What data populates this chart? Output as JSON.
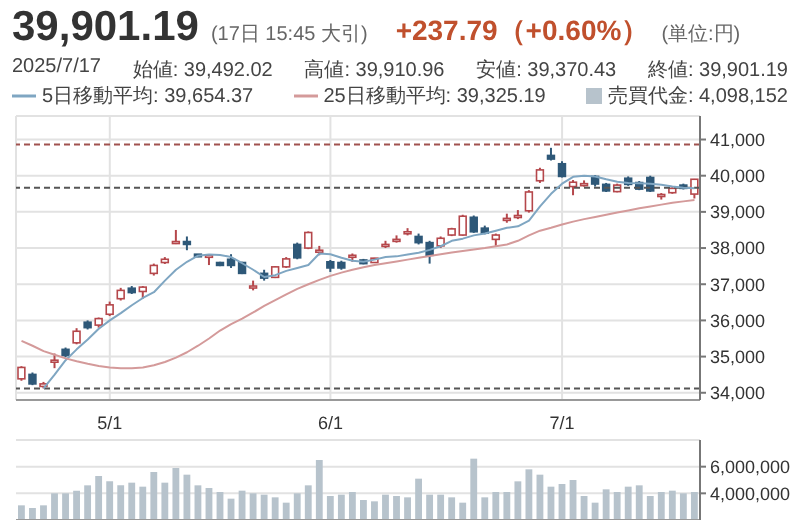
{
  "chart_data": [
    {
      "type": "candlestick",
      "title": "39,901.19",
      "subtitle": "(17日 15:45 大引)",
      "annotations": [
        "+237.79（+0.60%）",
        "(単位:円)",
        "2025/7/17",
        "始値: 39,492.02",
        "高値: 39,910.96",
        "安値: 39,370.43",
        "終値: 39,901.19"
      ],
      "categories": [
        null,
        null,
        null,
        null,
        null,
        null,
        null,
        null,
        "5/1",
        null,
        null,
        null,
        null,
        null,
        null,
        null,
        null,
        null,
        null,
        null,
        null,
        null,
        null,
        null,
        null,
        null,
        null,
        null,
        "6/1",
        null,
        null,
        null,
        null,
        null,
        null,
        null,
        null,
        null,
        null,
        null,
        null,
        null,
        null,
        null,
        null,
        null,
        null,
        null,
        null,
        "7/1",
        null,
        null,
        null,
        null,
        null,
        null,
        null,
        null,
        null,
        null,
        null,
        null
      ],
      "ohlc": [
        [
          34385,
          34735,
          34332,
          34700
        ],
        [
          34507,
          34560,
          34210,
          34245
        ],
        [
          34175,
          34300,
          34120,
          34245
        ],
        [
          34850,
          35085,
          34680,
          34900
        ],
        [
          35200,
          35250,
          34980,
          35030
        ],
        [
          35380,
          35785,
          35340,
          35700
        ],
        [
          35950,
          36000,
          35750,
          35800
        ],
        [
          35870,
          36080,
          35800,
          36050
        ],
        [
          36170,
          36520,
          36120,
          36430
        ],
        [
          36600,
          36900,
          36550,
          36830
        ],
        [
          36890,
          36950,
          36730,
          36770
        ],
        [
          36800,
          36950,
          36600,
          36920
        ],
        [
          37300,
          37570,
          37240,
          37520
        ],
        [
          37600,
          37750,
          37560,
          37690
        ],
        [
          38140,
          38500,
          38110,
          38180
        ],
        [
          38180,
          38320,
          37940,
          38100
        ],
        [
          37830,
          37830,
          37750,
          37760
        ],
        [
          37780,
          37800,
          37530,
          37800
        ],
        [
          37600,
          37620,
          37500,
          37520
        ],
        [
          37690,
          37830,
          37450,
          37520
        ],
        [
          37600,
          37620,
          37280,
          37300
        ],
        [
          36920,
          37100,
          36830,
          36950
        ],
        [
          37300,
          37400,
          37100,
          37170
        ],
        [
          37190,
          37500,
          37170,
          37480
        ],
        [
          37480,
          37750,
          37450,
          37700
        ],
        [
          38100,
          38150,
          37690,
          37730
        ],
        [
          38000,
          38460,
          37970,
          38430
        ],
        [
          37920,
          38060,
          37800,
          37940
        ],
        [
          37620,
          37670,
          37340,
          37450
        ],
        [
          37600,
          37650,
          37400,
          37450
        ],
        [
          37780,
          37850,
          37620,
          37800
        ],
        [
          37670,
          37700,
          37550,
          37570
        ],
        [
          37600,
          37730,
          37590,
          37720
        ],
        [
          38060,
          38200,
          38000,
          38100
        ],
        [
          38210,
          38350,
          38150,
          38240
        ],
        [
          38420,
          38550,
          38350,
          38450
        ],
        [
          38320,
          38400,
          38100,
          38150
        ],
        [
          38150,
          38200,
          37570,
          37800
        ],
        [
          38060,
          38320,
          38000,
          38270
        ],
        [
          38360,
          38560,
          38330,
          38530
        ],
        [
          38360,
          38920,
          38340,
          38880
        ],
        [
          38850,
          38900,
          38420,
          38450
        ],
        [
          38550,
          38620,
          38380,
          38410
        ],
        [
          38240,
          38400,
          38060,
          38360
        ],
        [
          38790,
          38950,
          38700,
          38820
        ],
        [
          38880,
          39050,
          38800,
          38900
        ],
        [
          39030,
          39600,
          38980,
          39550
        ],
        [
          39860,
          40220,
          39800,
          40160
        ],
        [
          40560,
          40770,
          40420,
          40460
        ],
        [
          40330,
          40400,
          39950,
          39980
        ],
        [
          39700,
          39880,
          39460,
          39820
        ],
        [
          39760,
          39870,
          39700,
          39780
        ],
        [
          39980,
          40020,
          39700,
          39770
        ],
        [
          39760,
          39800,
          39550,
          39580
        ],
        [
          39560,
          39780,
          39540,
          39740
        ],
        [
          39930,
          39980,
          39720,
          39760
        ],
        [
          39810,
          39850,
          39600,
          39630
        ],
        [
          39950,
          40000,
          39550,
          39580
        ],
        [
          39450,
          39520,
          39340,
          39480
        ],
        [
          39530,
          39680,
          39500,
          39650
        ],
        [
          39740,
          39780,
          39620,
          39650
        ],
        [
          39492.02,
          39910.96,
          39370.43,
          39901.19
        ]
      ],
      "series": [
        {
          "type": "line",
          "name": "5日移動平均: 39,654.37",
          "color": "#7fa6c2",
          "values": [
            null,
            null,
            34120,
            34500,
            34900,
            35200,
            35470,
            35770,
            36000,
            36200,
            36420,
            36620,
            36780,
            37100,
            37400,
            37620,
            37790,
            37820,
            37810,
            37750,
            37580,
            37400,
            37200,
            37250,
            37370,
            37450,
            37530,
            37850,
            37830,
            37730,
            37650,
            37620,
            37680,
            37750,
            37770,
            37820,
            37870,
            37950,
            38050,
            38200,
            38260,
            38350,
            38400,
            38480,
            38560,
            38600,
            38760,
            39150,
            39500,
            39780,
            39970,
            40000,
            39980,
            39900,
            39830,
            39800,
            39790,
            39780,
            39750,
            39700,
            39670,
            39654.37
          ]
        },
        {
          "type": "line",
          "name": "25日移動平均: 39,325.19",
          "color": "#d49a9a",
          "values": [
            35435,
            35300,
            35150,
            35050,
            34950,
            34870,
            34800,
            34740,
            34700,
            34680,
            34680,
            34700,
            34760,
            34850,
            34970,
            35120,
            35300,
            35500,
            35720,
            35900,
            36050,
            36220,
            36400,
            36560,
            36720,
            36870,
            37000,
            37120,
            37230,
            37320,
            37400,
            37470,
            37530,
            37580,
            37630,
            37680,
            37730,
            37780,
            37830,
            37880,
            37920,
            37960,
            38000,
            38050,
            38100,
            38200,
            38350,
            38480,
            38560,
            38650,
            38730,
            38800,
            38860,
            38920,
            38980,
            39040,
            39100,
            39150,
            39200,
            39250,
            39290,
            39325.19
          ]
        }
      ],
      "ylim": [
        33800,
        41650
      ],
      "yticks": [
        {
          "value": 34000,
          "label": "34,000"
        },
        {
          "value": 35000,
          "label": "35,000"
        },
        {
          "value": 36000,
          "label": "36,000"
        },
        {
          "value": 37000,
          "label": "37,000"
        },
        {
          "value": 38000,
          "label": "38,000"
        },
        {
          "value": 39000,
          "label": "39,000"
        },
        {
          "value": 40000,
          "label": "40,000"
        },
        {
          "value": 41000,
          "label": "41,000"
        }
      ],
      "ref_lines": [
        {
          "axis": "y",
          "value": 40860,
          "color": "#a0524f",
          "line_style": "dashed"
        },
        {
          "axis": "y",
          "value": 39670,
          "color": "#555555",
          "line_style": "dashed"
        },
        {
          "axis": "y",
          "value": 34120,
          "color": "#555555",
          "line_style": "dashed"
        }
      ],
      "grid": true,
      "legend": "top"
    },
    {
      "type": "bar",
      "categories": [
        null,
        null,
        null,
        null,
        null,
        null,
        null,
        null,
        null,
        null,
        null,
        null,
        null,
        null,
        null,
        null,
        null,
        null,
        null,
        null,
        null,
        null,
        null,
        null,
        null,
        null,
        null,
        null,
        null,
        null,
        null,
        null,
        null,
        null,
        null,
        null,
        null,
        null,
        null,
        null,
        null,
        null,
        null,
        null,
        null,
        null,
        null,
        null,
        null,
        null,
        null,
        null,
        null,
        null,
        null,
        null,
        null,
        null,
        null,
        null,
        null,
        null
      ],
      "series": [
        {
          "name": "売買代金: 4,098,152",
          "color": "#b7c3cc",
          "values": [
            3100000,
            2900000,
            3100000,
            4000000,
            4000000,
            4200000,
            4600000,
            5300000,
            4900000,
            4600000,
            4800000,
            4500000,
            5600000,
            4800000,
            5900000,
            5400000,
            4600000,
            4400000,
            4100000,
            3600000,
            4200000,
            4000000,
            3900000,
            3700000,
            3300000,
            4000000,
            4600000,
            6500000,
            3800000,
            3900000,
            4100000,
            3500000,
            3400000,
            3900000,
            3800000,
            3700000,
            5100000,
            3900000,
            3900000,
            3700000,
            3300000,
            6600000,
            3700000,
            4100000,
            4100000,
            4900000,
            5800000,
            5400000,
            4500000,
            4700000,
            5000000,
            3800000,
            3300000,
            4300000,
            4100000,
            4500000,
            4600000,
            3800000,
            4100000,
            4200000,
            4000000,
            4100000
          ]
        }
      ],
      "ylim": [
        2000000,
        8000000
      ],
      "yticks": [
        {
          "value": 4000000,
          "label": "4,000,000"
        },
        {
          "value": 6000000,
          "label": "6,000,000"
        }
      ],
      "tick_labels": "y",
      "grid": "y",
      "legend": "top"
    }
  ]
}
